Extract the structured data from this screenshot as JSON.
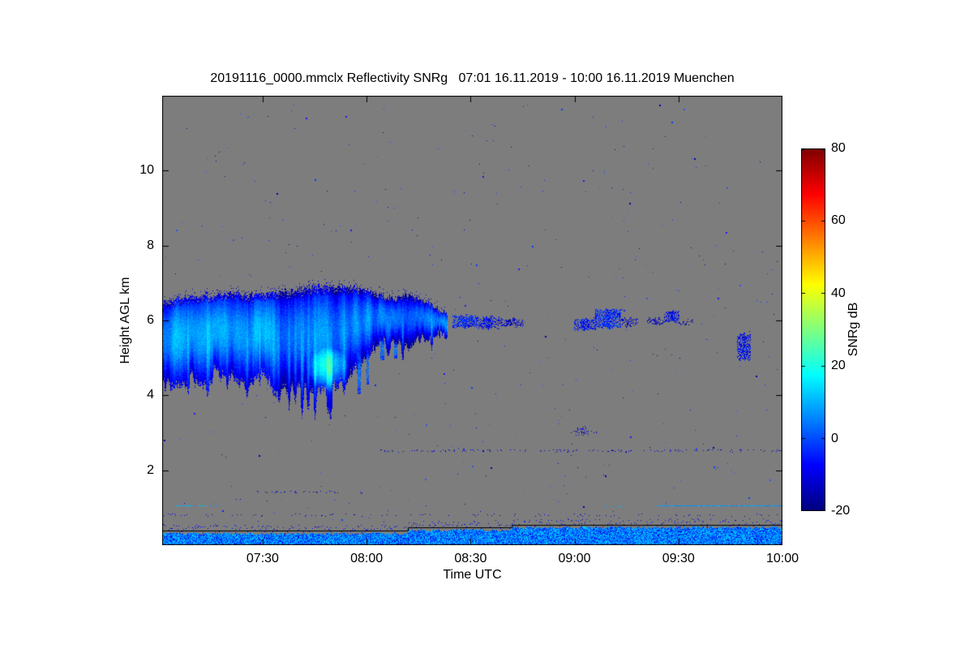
{
  "chart_data": {
    "type": "heatmap",
    "title": "20191116_0000.mmclx Reflectivity SNRg   07:01 16.11.2019 - 10:00 16.11.2019 Muenchen",
    "xlabel": "Time UTC",
    "ylabel": "Height AGL km",
    "colorbar_label": "SNRg dB",
    "colormap": "jet",
    "background_color": "#7d7d7d",
    "x_axis": {
      "origin_time": "07:01",
      "range_minutes": [
        0,
        179
      ],
      "ticks": [
        {
          "label": "07:30",
          "minute": 29
        },
        {
          "label": "08:00",
          "minute": 59
        },
        {
          "label": "08:30",
          "minute": 89
        },
        {
          "label": "09:00",
          "minute": 119
        },
        {
          "label": "09:30",
          "minute": 149
        },
        {
          "label": "10:00",
          "minute": 179
        }
      ]
    },
    "y_axis": {
      "range_km": [
        0,
        12
      ],
      "ticks": [
        2,
        4,
        6,
        8,
        10
      ]
    },
    "colorbar": {
      "range_db": [
        -20,
        80
      ],
      "ticks": [
        80,
        60,
        40,
        20,
        0,
        -20
      ]
    },
    "features": {
      "seed": 1337,
      "noise_dots": {
        "count": 430,
        "max_height_km": 11.8,
        "colors": [
          "#0000aa",
          "#1a1aee",
          "#0040ff",
          "#3355ee"
        ]
      },
      "dot_rows": [
        {
          "h": 2.52,
          "t0": 62,
          "t1": 179,
          "count": 150
        },
        {
          "h": 1.42,
          "t0": 27,
          "t1": 58,
          "count": 36
        },
        {
          "h": 0.8,
          "t0": 0,
          "t1": 179,
          "count": 90
        },
        {
          "h": 3.02,
          "t0": 118,
          "t1": 126,
          "count": 12
        }
      ],
      "cyan_lines": [
        {
          "h": 1.05,
          "t0": 4,
          "t1": 17,
          "dash": true
        },
        {
          "h": 1.03,
          "t0": 128,
          "t1": 133,
          "dash": true
        },
        {
          "h": 1.05,
          "t0": 143,
          "t1": 179,
          "dash": false
        }
      ],
      "main_cloud": {
        "t0": 0,
        "t1": 82,
        "top": [
          [
            0,
            6.5
          ],
          [
            6,
            6.65
          ],
          [
            12,
            6.7
          ],
          [
            18,
            6.75
          ],
          [
            24,
            6.7
          ],
          [
            30,
            6.75
          ],
          [
            36,
            6.8
          ],
          [
            42,
            6.9
          ],
          [
            48,
            6.95
          ],
          [
            54,
            6.9
          ],
          [
            58,
            6.85
          ],
          [
            62,
            6.7
          ],
          [
            66,
            6.6
          ],
          [
            70,
            6.72
          ],
          [
            74,
            6.6
          ],
          [
            78,
            6.45
          ],
          [
            82,
            6.15
          ]
        ],
        "base": [
          [
            0,
            4.35
          ],
          [
            4,
            4.2
          ],
          [
            8,
            4.55
          ],
          [
            12,
            4.3
          ],
          [
            16,
            4.7
          ],
          [
            20,
            4.45
          ],
          [
            24,
            4.3
          ],
          [
            28,
            4.6
          ],
          [
            32,
            4.35
          ],
          [
            36,
            4.15
          ],
          [
            40,
            4.3
          ],
          [
            44,
            3.95
          ],
          [
            48,
            4.15
          ],
          [
            52,
            4.35
          ],
          [
            56,
            4.7
          ],
          [
            60,
            5.15
          ],
          [
            64,
            5.45
          ],
          [
            68,
            5.3
          ],
          [
            72,
            5.42
          ],
          [
            76,
            5.5
          ],
          [
            80,
            5.65
          ],
          [
            82,
            5.85
          ]
        ],
        "green_core": {
          "t": 48,
          "h": 4.7,
          "rt": 6,
          "rh": 0.6,
          "boost_db": 22
        }
      },
      "streak_columns": [
        {
          "t": 56.5,
          "h0": 4.05,
          "h1": 5.2,
          "w": 4
        },
        {
          "t": 59,
          "h0": 4.3,
          "h1": 5.15,
          "w": 3
        },
        {
          "t": 63,
          "h0": 4.95,
          "h1": 5.5,
          "w": 5
        },
        {
          "t": 67,
          "h0": 5.0,
          "h1": 5.4,
          "w": 4
        }
      ],
      "patches": [
        {
          "t0": 84,
          "t1": 91,
          "h0": 5.8,
          "h1": 6.15,
          "v": -5,
          "frag": 0.2
        },
        {
          "t0": 91,
          "t1": 97,
          "h0": 5.78,
          "h1": 6.1,
          "v": -8,
          "frag": 0.3
        },
        {
          "t0": 97,
          "t1": 104,
          "h0": 5.85,
          "h1": 6.05,
          "v": -12,
          "frag": 0.4
        },
        {
          "t0": 119,
          "t1": 125,
          "h0": 5.75,
          "h1": 6.05,
          "v": -6,
          "frag": 0.25
        },
        {
          "t0": 125,
          "t1": 132,
          "h0": 5.8,
          "h1": 6.3,
          "v": -4,
          "frag": 0.18
        },
        {
          "t0": 132,
          "t1": 137,
          "h0": 5.85,
          "h1": 6.05,
          "v": -12,
          "frag": 0.5
        },
        {
          "t0": 140,
          "t1": 145,
          "h0": 5.9,
          "h1": 6.05,
          "v": -12,
          "frag": 0.45
        },
        {
          "t0": 145,
          "t1": 149,
          "h0": 5.95,
          "h1": 6.25,
          "v": -8,
          "frag": 0.25
        },
        {
          "t0": 149,
          "t1": 153,
          "h0": 5.9,
          "h1": 6.02,
          "v": -15,
          "frag": 0.55
        },
        {
          "t0": 166,
          "t1": 169.5,
          "h0": 4.95,
          "h1": 5.65,
          "v": -8,
          "frag": 0.3
        },
        {
          "t0": 119,
          "t1": 123,
          "h0": 2.95,
          "h1": 3.18,
          "v": -14,
          "frag": 0.6
        }
      ],
      "boundary_layer": {
        "v_mean": 6,
        "v_var": 9,
        "spray_top_km": 0.6
      },
      "black_steps": [
        [
          0,
          0.38
        ],
        [
          71,
          0.38
        ],
        [
          71,
          0.47
        ],
        [
          101,
          0.47
        ],
        [
          101,
          0.54
        ],
        [
          179,
          0.54
        ]
      ]
    }
  }
}
